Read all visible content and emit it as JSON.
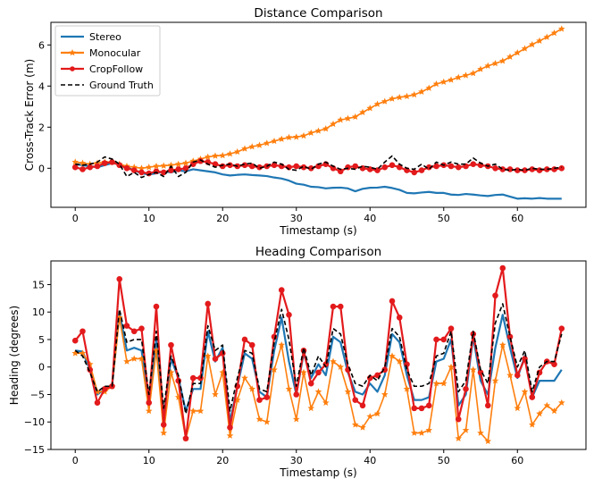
{
  "chart_data": [
    {
      "type": "line",
      "title": "Distance Comparison",
      "xlabel": "Timestamp (s)",
      "ylabel": "Cross-Track Error (m)",
      "xlim": [
        -3.3,
        69.3
      ],
      "ylim": [
        -1.9,
        7.1
      ],
      "xticks": [
        "0",
        "10",
        "20",
        "30",
        "40",
        "50",
        "60"
      ],
      "yticks": [
        "0",
        "2",
        "4",
        "6"
      ],
      "xtick_values": [
        0,
        10,
        20,
        30,
        40,
        50,
        60
      ],
      "ytick_values": [
        0,
        2,
        4,
        6
      ],
      "legend_position": "upper-left",
      "series": [
        {
          "name": "Stereo",
          "color": "#1f77b4",
          "style": "solid",
          "marker": "none",
          "values": [
            0.2,
            0.15,
            0.1,
            0.05,
            0.15,
            0.25,
            0.2,
            0.05,
            -0.1,
            -0.25,
            -0.3,
            -0.25,
            -0.15,
            -0.2,
            -0.1,
            -0.15,
            -0.05,
            -0.1,
            -0.15,
            -0.2,
            -0.3,
            -0.35,
            -0.32,
            -0.3,
            -0.33,
            -0.35,
            -0.38,
            -0.45,
            -0.5,
            -0.6,
            -0.75,
            -0.8,
            -0.9,
            -0.92,
            -0.98,
            -0.95,
            -0.94,
            -0.98,
            -1.12,
            -1.0,
            -0.95,
            -0.94,
            -0.9,
            -0.96,
            -1.05,
            -1.2,
            -1.22,
            -1.18,
            -1.15,
            -1.2,
            -1.2,
            -1.28,
            -1.3,
            -1.25,
            -1.28,
            -1.32,
            -1.35,
            -1.3,
            -1.28,
            -1.38,
            -1.48,
            -1.46,
            -1.48,
            -1.45,
            -1.48,
            -1.48,
            -1.48
          ]
        },
        {
          "name": "Monocular",
          "color": "#ff7f0e",
          "style": "solid",
          "marker": "star",
          "values": [
            0.3,
            0.25,
            0.2,
            0.25,
            0.3,
            0.3,
            0.2,
            0.1,
            0.05,
            0.0,
            0.05,
            0.1,
            0.12,
            0.15,
            0.2,
            0.25,
            0.35,
            0.45,
            0.55,
            0.6,
            0.62,
            0.7,
            0.8,
            0.95,
            1.05,
            1.12,
            1.22,
            1.32,
            1.42,
            1.5,
            1.52,
            1.58,
            1.72,
            1.82,
            1.92,
            2.15,
            2.35,
            2.42,
            2.5,
            2.72,
            2.92,
            3.12,
            3.25,
            3.38,
            3.45,
            3.5,
            3.58,
            3.72,
            3.9,
            4.1,
            4.2,
            4.3,
            4.42,
            4.52,
            4.62,
            4.82,
            4.98,
            5.1,
            5.22,
            5.42,
            5.62,
            5.82,
            6.02,
            6.2,
            6.38,
            6.58,
            6.78
          ]
        },
        {
          "name": "CropFollow",
          "color": "#e31a1c",
          "style": "solid",
          "marker": "circle",
          "values": [
            0.05,
            -0.05,
            0.05,
            0.1,
            0.25,
            0.3,
            0.15,
            0.0,
            -0.1,
            -0.2,
            -0.25,
            -0.15,
            -0.2,
            -0.1,
            -0.05,
            0.0,
            0.2,
            0.35,
            0.3,
            0.2,
            0.1,
            0.15,
            0.1,
            0.15,
            0.1,
            0.05,
            0.1,
            0.15,
            0.1,
            0.05,
            0.1,
            0.05,
            0.0,
            0.1,
            0.2,
            0.0,
            -0.15,
            0.05,
            0.1,
            0.0,
            -0.05,
            -0.1,
            0.05,
            0.15,
            0.05,
            -0.1,
            -0.2,
            -0.1,
            0.05,
            0.1,
            0.15,
            0.1,
            0.05,
            0.1,
            0.2,
            0.15,
            0.1,
            0.0,
            -0.05,
            -0.05,
            -0.1,
            -0.1,
            -0.05,
            -0.1,
            -0.05,
            -0.05,
            0.0
          ]
        },
        {
          "name": "Ground Truth",
          "color": "#000000",
          "style": "dashed",
          "marker": "none",
          "values": [
            0.2,
            0.15,
            0.2,
            0.3,
            0.55,
            0.45,
            0.2,
            -0.4,
            -0.2,
            -0.45,
            -0.3,
            -0.2,
            -0.4,
            0.1,
            -0.4,
            -0.2,
            0.3,
            0.4,
            0.2,
            0.05,
            0.15,
            0.2,
            0.1,
            0.2,
            0.25,
            0.0,
            0.1,
            0.3,
            0.2,
            -0.05,
            -0.1,
            0.1,
            -0.05,
            0.2,
            0.3,
            0.1,
            -0.05,
            0.0,
            -0.05,
            0.1,
            0.05,
            -0.05,
            0.3,
            0.6,
            0.2,
            0.0,
            -0.05,
            0.2,
            -0.05,
            0.3,
            0.15,
            0.3,
            0.2,
            0.2,
            0.5,
            0.25,
            0.1,
            0.2,
            -0.05,
            -0.1,
            -0.05,
            -0.1,
            0.0,
            -0.05,
            -0.05,
            0.0,
            0.05
          ]
        }
      ]
    },
    {
      "type": "line",
      "title": "Heading Comparison",
      "xlabel": "Timestamp (s)",
      "ylabel": "Heading (degrees)",
      "xlim": [
        -3.3,
        69.3
      ],
      "ylim": [
        -15.0,
        19.3
      ],
      "xticks": [
        "0",
        "10",
        "20",
        "30",
        "40",
        "50",
        "60"
      ],
      "yticks": [
        "−15",
        "−10",
        "−5",
        "0",
        "5",
        "10",
        "15"
      ],
      "xtick_values": [
        0,
        10,
        20,
        30,
        40,
        50,
        60
      ],
      "ytick_values": [
        -15,
        -10,
        -5,
        0,
        5,
        10,
        15
      ],
      "legend_position": "none",
      "series": [
        {
          "name": "Stereo",
          "color": "#1f77b4",
          "style": "solid",
          "marker": "none",
          "values": [
            3.0,
            2.8,
            -0.5,
            -5.0,
            -4.0,
            -3.5,
            10.0,
            3.0,
            3.5,
            3.0,
            -6.0,
            5.0,
            -9.0,
            1.5,
            -2.0,
            -8.0,
            -4.0,
            -4.0,
            6.5,
            1.0,
            3.5,
            -10.0,
            -3.5,
            2.5,
            1.5,
            -4.5,
            -5.5,
            3.0,
            9.0,
            1.0,
            -5.0,
            2.5,
            -2.0,
            0.5,
            -1.5,
            5.5,
            4.5,
            -1.0,
            -4.5,
            -5.0,
            -3.0,
            -4.5,
            -1.5,
            6.0,
            4.5,
            -1.5,
            -6.0,
            -6.0,
            -5.5,
            1.0,
            1.5,
            5.0,
            -7.0,
            -5.0,
            5.5,
            -2.5,
            -5.0,
            3.5,
            9.5,
            3.5,
            -2.0,
            2.0,
            -5.5,
            -2.5,
            -2.5,
            -2.5,
            -0.5
          ]
        },
        {
          "name": "Monocular",
          "color": "#ff7f0e",
          "style": "solid",
          "marker": "star",
          "values": [
            2.5,
            2.5,
            0.5,
            -4.5,
            -4.5,
            -3.5,
            9.0,
            1.0,
            1.5,
            1.5,
            -8.0,
            3.0,
            -12.0,
            -1.0,
            -5.5,
            -13.0,
            -8.0,
            -8.0,
            2.0,
            -5.0,
            -1.0,
            -12.5,
            -6.0,
            -2.0,
            -4.0,
            -9.5,
            -10.0,
            -0.5,
            4.0,
            -4.0,
            -9.5,
            -1.0,
            -7.5,
            -4.5,
            -6.5,
            1.0,
            0.0,
            -4.5,
            -10.5,
            -11.0,
            -9.0,
            -8.5,
            -5.0,
            2.0,
            1.0,
            -4.0,
            -12.0,
            -12.0,
            -11.5,
            -3.0,
            -3.0,
            0.0,
            -13.0,
            -11.5,
            -0.5,
            -12.0,
            -13.5,
            -2.5,
            4.0,
            -1.5,
            -7.5,
            -4.5,
            -10.5,
            -8.5,
            -7.0,
            -8.0,
            -6.5
          ]
        },
        {
          "name": "CropFollow",
          "color": "#e31a1c",
          "style": "solid",
          "marker": "circle",
          "values": [
            4.8,
            6.5,
            -0.5,
            -6.5,
            -4.0,
            -3.5,
            16.0,
            7.5,
            6.5,
            7.0,
            -6.5,
            11.0,
            -10.5,
            4.0,
            -2.5,
            -13.0,
            -2.0,
            -2.0,
            11.5,
            1.5,
            2.5,
            -11.0,
            -3.5,
            5.0,
            4.0,
            -6.0,
            -5.5,
            5.5,
            14.0,
            9.5,
            -5.0,
            3.0,
            -3.0,
            -1.0,
            0.5,
            11.0,
            11.0,
            -0.5,
            -6.0,
            -7.0,
            -2.0,
            -1.5,
            -0.5,
            12.0,
            9.0,
            0.5,
            -7.5,
            -7.5,
            -7.0,
            5.0,
            5.0,
            7.0,
            -9.5,
            -4.0,
            6.0,
            -1.0,
            -7.0,
            13.0,
            18.0,
            5.5,
            -1.5,
            1.5,
            -5.5,
            -1.0,
            1.0,
            0.5,
            7.0
          ]
        },
        {
          "name": "Ground Truth",
          "color": "#000000",
          "style": "dashed",
          "marker": "none",
          "values": [
            3.0,
            2.0,
            -1.0,
            -4.5,
            -3.5,
            -3.5,
            10.5,
            4.5,
            5.0,
            5.0,
            -5.0,
            6.5,
            -7.5,
            2.0,
            -1.5,
            -8.5,
            -3.0,
            -3.0,
            7.5,
            3.0,
            4.0,
            -8.0,
            -2.0,
            3.0,
            2.5,
            -4.0,
            -4.5,
            4.5,
            10.5,
            5.0,
            -3.5,
            3.5,
            -1.5,
            2.0,
            0.0,
            7.0,
            6.0,
            0.5,
            -3.0,
            -3.5,
            -1.5,
            -2.5,
            0.0,
            7.0,
            5.5,
            -0.5,
            -3.5,
            -3.5,
            -3.0,
            2.0,
            2.5,
            6.5,
            -4.5,
            -2.5,
            6.5,
            -0.5,
            -3.0,
            8.0,
            11.5,
            5.5,
            0.0,
            3.0,
            -4.5,
            0.0,
            1.0,
            1.0,
            6.0
          ]
        }
      ]
    }
  ]
}
